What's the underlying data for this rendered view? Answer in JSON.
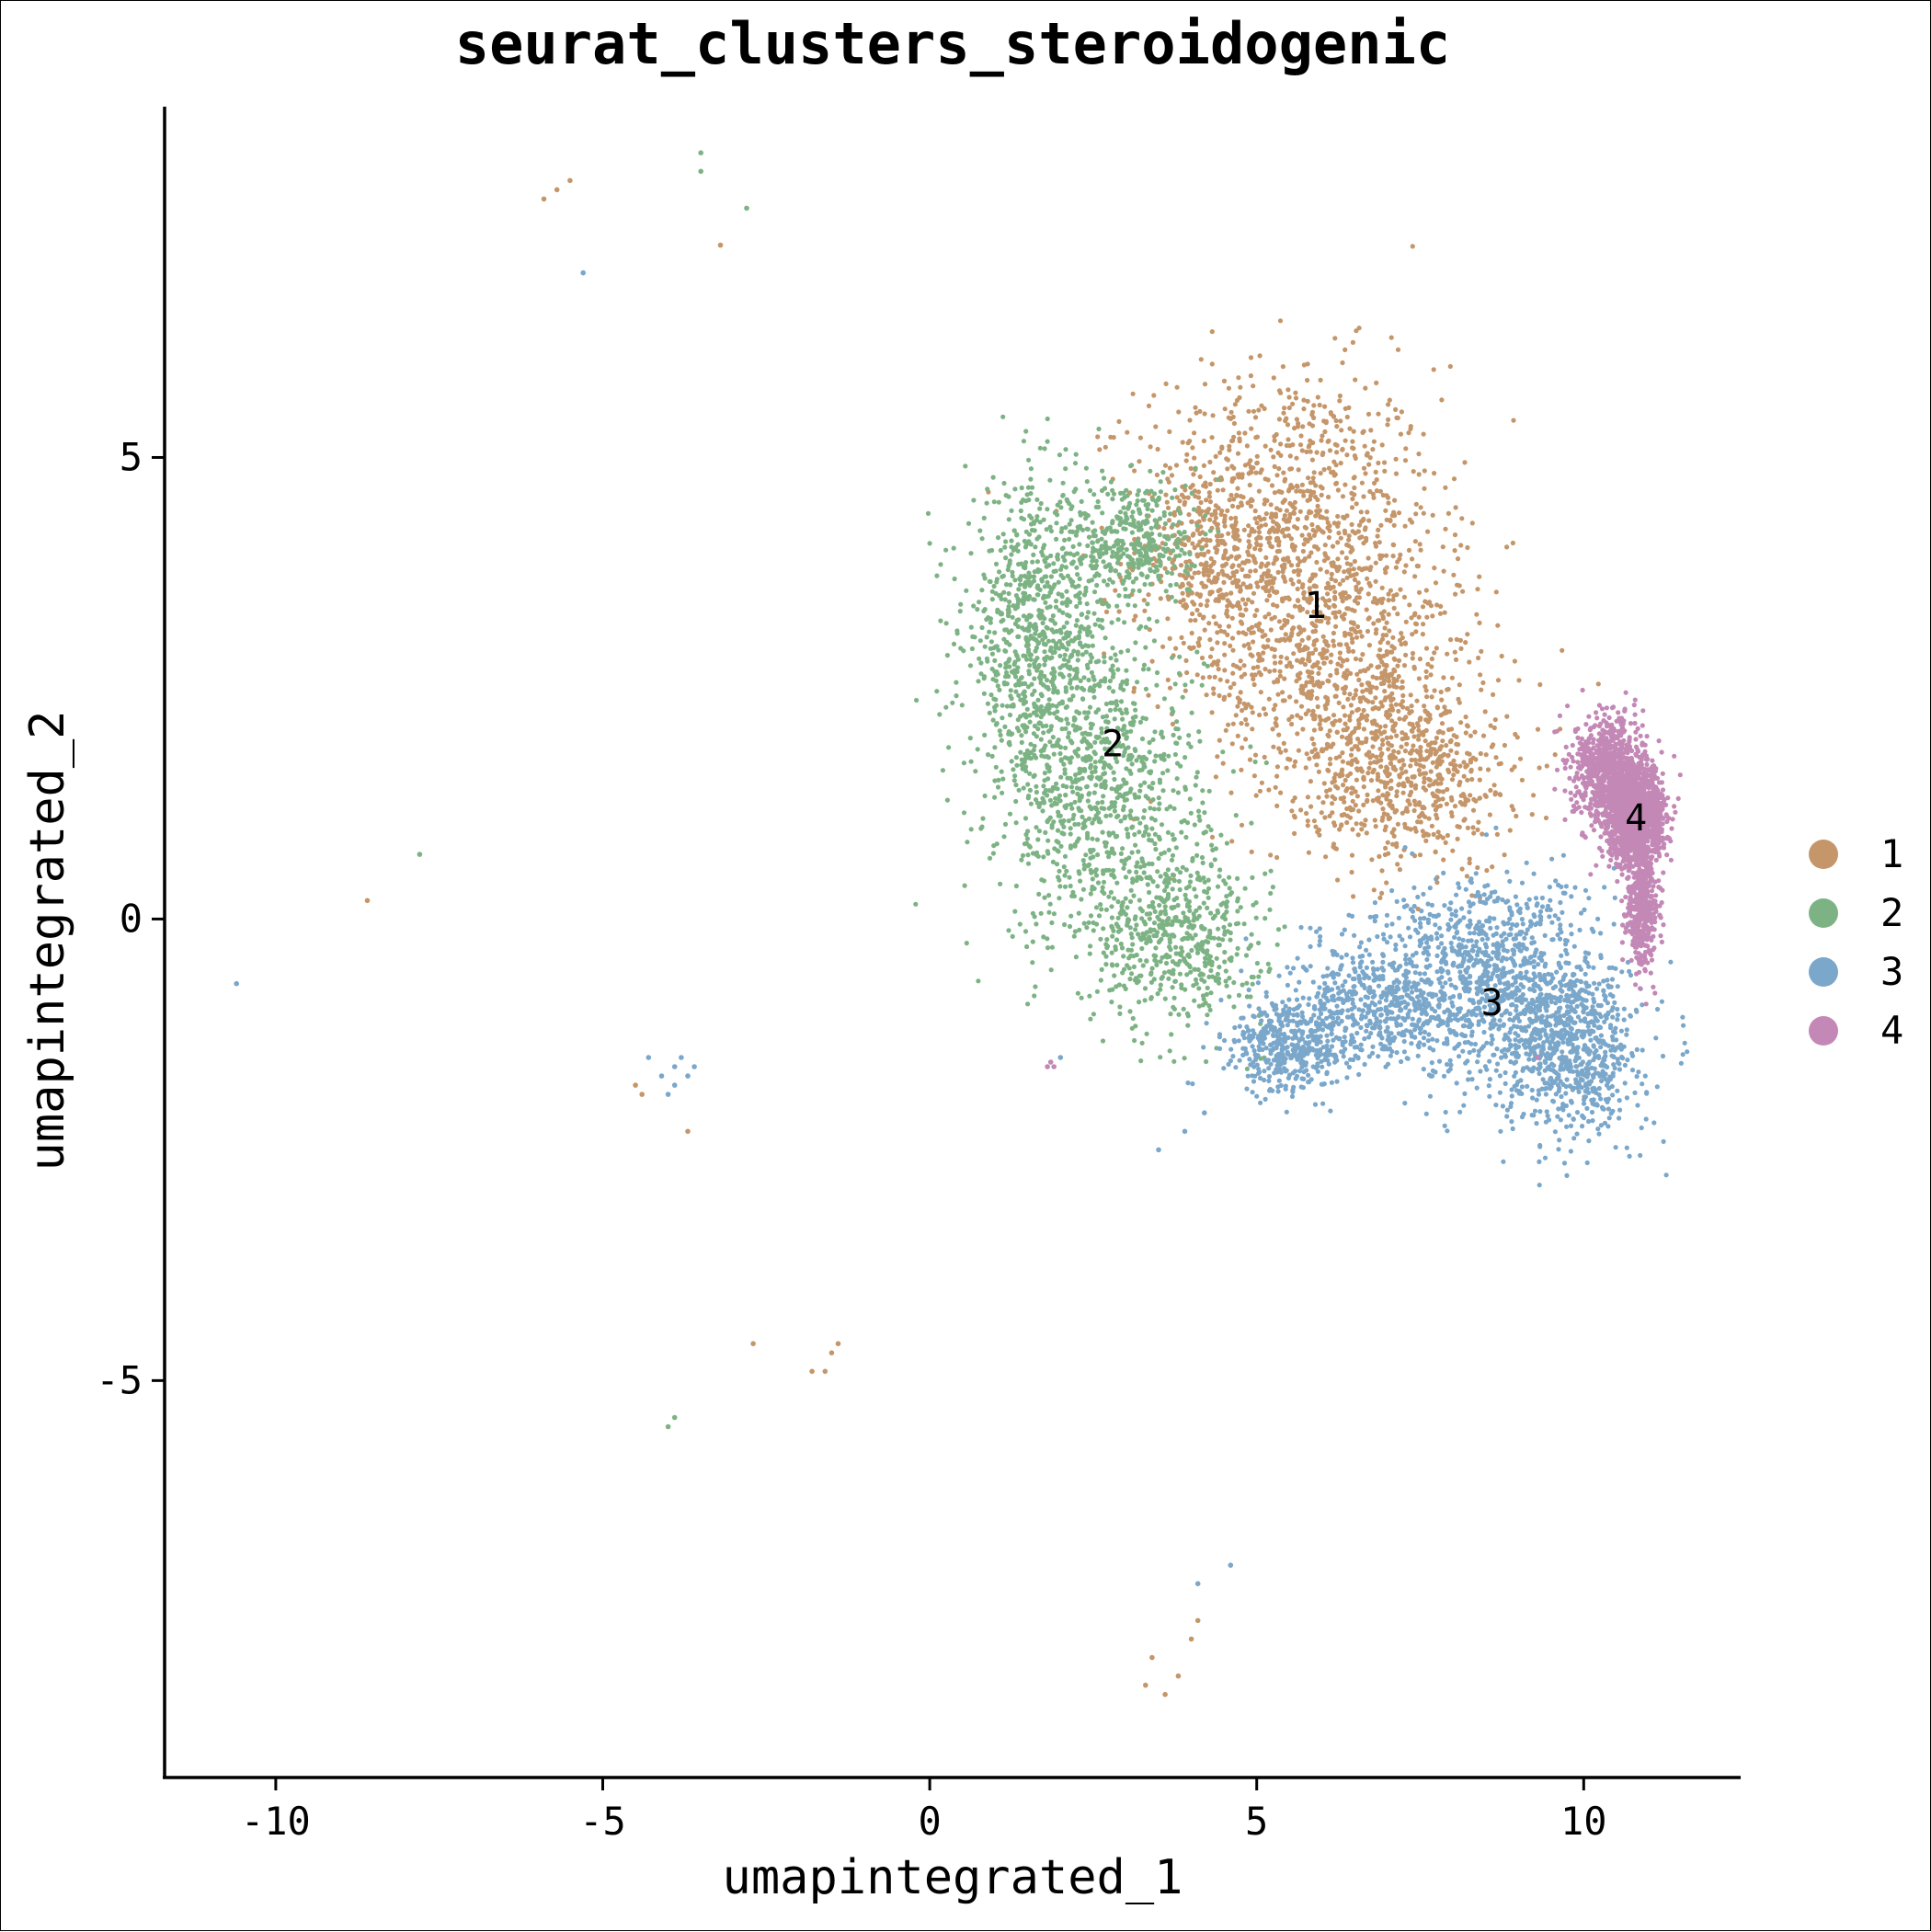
{
  "chart_data": {
    "type": "scatter",
    "title": "seurat_clusters_steroidogenic",
    "xlabel": "umapintegrated_1",
    "ylabel": "umapintegrated_2",
    "xlim": [
      -11.7,
      12.4
    ],
    "ylim": [
      -9.3,
      8.8
    ],
    "x_ticks": [
      -10,
      -5,
      0,
      5,
      10
    ],
    "x_tick_labels": [
      "-10",
      "-5",
      "0",
      "5",
      "10"
    ],
    "y_ticks": [
      -5,
      0,
      5
    ],
    "y_tick_labels": [
      "-5",
      "0",
      "5"
    ],
    "grid": false,
    "legend_position": "right",
    "series": [
      {
        "name": "1",
        "color": "#C4966A",
        "label_position": [
          5.9,
          3.4
        ],
        "density_regions": [
          {
            "cx": 5.5,
            "cy": 4.2,
            "rx": 1.9,
            "ry": 1.5,
            "weight": 0.4
          },
          {
            "cx": 6.4,
            "cy": 2.6,
            "rx": 1.7,
            "ry": 1.2,
            "weight": 0.3
          },
          {
            "cx": 7.4,
            "cy": 1.5,
            "rx": 1.3,
            "ry": 0.8,
            "weight": 0.2
          },
          {
            "cx": 4.3,
            "cy": 3.9,
            "rx": 0.9,
            "ry": 1.0,
            "weight": 0.1
          }
        ],
        "outliers": [
          [
            -5.9,
            7.8
          ],
          [
            -5.7,
            7.9
          ],
          [
            -5.5,
            8.0
          ],
          [
            -3.2,
            7.3
          ],
          [
            -8.6,
            0.2
          ],
          [
            -4.5,
            -1.8
          ],
          [
            -4.4,
            -1.9
          ],
          [
            -3.7,
            -2.3
          ],
          [
            -2.7,
            -4.6
          ],
          [
            -1.8,
            -4.9
          ],
          [
            -1.5,
            -4.7
          ],
          [
            -1.4,
            -4.6
          ],
          [
            -1.6,
            -4.9
          ],
          [
            3.3,
            -8.3
          ],
          [
            3.6,
            -8.4
          ],
          [
            3.8,
            -8.2
          ],
          [
            4.0,
            -7.8
          ],
          [
            4.1,
            -7.6
          ],
          [
            3.4,
            -8.0
          ]
        ]
      },
      {
        "name": "2",
        "color": "#7DB384",
        "label_position": [
          2.8,
          1.9
        ],
        "density_regions": [
          {
            "cx": 1.6,
            "cy": 3.1,
            "rx": 0.9,
            "ry": 1.3,
            "weight": 0.3
          },
          {
            "cx": 2.6,
            "cy": 1.4,
            "rx": 1.3,
            "ry": 1.4,
            "weight": 0.35
          },
          {
            "cx": 3.8,
            "cy": -0.2,
            "rx": 1.1,
            "ry": 0.8,
            "weight": 0.2
          },
          {
            "cx": 3.1,
            "cy": 4.1,
            "rx": 0.8,
            "ry": 0.6,
            "weight": 0.15
          }
        ],
        "outliers": [
          [
            -3.5,
            8.3
          ],
          [
            -3.5,
            8.1
          ],
          [
            -2.8,
            7.7
          ],
          [
            -7.8,
            0.7
          ],
          [
            -4.0,
            -5.5
          ],
          [
            -3.9,
            -5.4
          ]
        ]
      },
      {
        "name": "3",
        "color": "#7AA7CA",
        "label_position": [
          8.6,
          -0.9
        ],
        "density_regions": [
          {
            "cx": 8.5,
            "cy": -0.6,
            "rx": 1.4,
            "ry": 0.9,
            "weight": 0.35
          },
          {
            "cx": 9.8,
            "cy": -1.4,
            "rx": 0.9,
            "ry": 0.8,
            "weight": 0.3
          },
          {
            "cx": 6.8,
            "cy": -0.9,
            "rx": 1.2,
            "ry": 0.6,
            "weight": 0.2
          },
          {
            "cx": 5.5,
            "cy": -1.4,
            "rx": 0.8,
            "ry": 0.4,
            "weight": 0.15
          }
        ],
        "outliers": [
          [
            -5.3,
            7.0
          ],
          [
            -10.6,
            -0.7
          ],
          [
            -4.3,
            -1.5
          ],
          [
            -4.1,
            -1.7
          ],
          [
            -3.9,
            -1.6
          ],
          [
            -3.8,
            -1.5
          ],
          [
            -3.7,
            -1.7
          ],
          [
            -3.9,
            -1.8
          ],
          [
            -4.0,
            -1.9
          ],
          [
            -3.6,
            -1.6
          ],
          [
            2.0,
            -1.5
          ],
          [
            3.5,
            -2.5
          ],
          [
            3.9,
            -2.3
          ],
          [
            4.2,
            -2.1
          ],
          [
            4.6,
            -7.0
          ],
          [
            4.1,
            -7.2
          ]
        ]
      },
      {
        "name": "4",
        "color": "#C388B6",
        "label_position": [
          10.8,
          1.1
        ],
        "density_regions": [
          {
            "cx": 10.8,
            "cy": 1.1,
            "rx": 0.35,
            "ry": 0.45,
            "weight": 0.55
          },
          {
            "cx": 10.4,
            "cy": 1.6,
            "rx": 0.45,
            "ry": 0.5,
            "weight": 0.3
          },
          {
            "cx": 10.9,
            "cy": 0.1,
            "rx": 0.2,
            "ry": 0.5,
            "weight": 0.15
          }
        ],
        "outliers": [
          [
            1.8,
            -1.6
          ],
          [
            1.9,
            -1.6
          ],
          [
            1.85,
            -1.55
          ],
          [
            9.3,
            -1.5
          ]
        ]
      }
    ]
  }
}
